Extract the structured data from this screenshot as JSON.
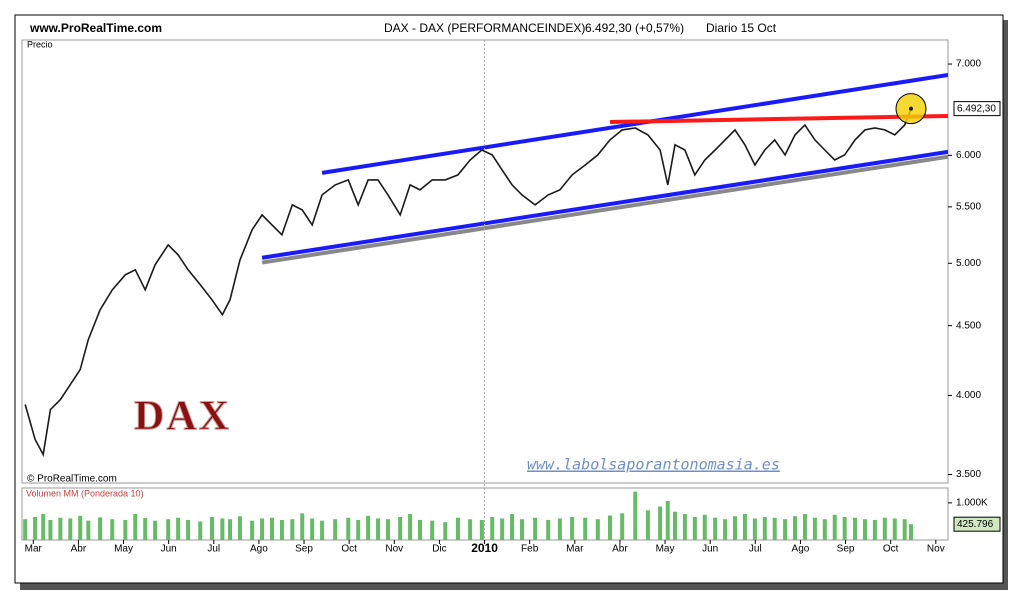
{
  "site": "www.ProRealTime.com",
  "header": {
    "title": "DAX - DAX (PERFORMANCEINDEX)",
    "change": "6.492,30 (+0,57%)",
    "period": "Diario  15 Oct"
  },
  "chart_data": [
    {
      "type": "line",
      "label": "Precio",
      "copyright": "© ProRealTime.com",
      "watermark": "DAX",
      "url": "www.labolsaporantonomasia.es",
      "log_scale": true,
      "xlim": [
        -0.25,
        20.27
      ],
      "ylim": [
        3450,
        7290
      ],
      "yticks": [
        {
          "value": 3500,
          "label": "3.500"
        },
        {
          "value": 4000,
          "label": "4.000"
        },
        {
          "value": 4500,
          "label": "4.500"
        },
        {
          "value": 5000,
          "label": "5.000"
        },
        {
          "value": 5500,
          "label": "5.500"
        },
        {
          "value": 6000,
          "label": "6.000"
        },
        {
          "value": 7000,
          "label": "7.000"
        }
      ],
      "highlight_color": "#f5d000",
      "series": [
        {
          "name": "DAX",
          "color": "#1a1a1a",
          "x": [
            -0.18,
            0.04,
            0.22,
            0.38,
            0.6,
            0.82,
            1.04,
            1.22,
            1.48,
            1.75,
            2.04,
            2.26,
            2.48,
            2.7,
            2.99,
            3.21,
            3.43,
            3.7,
            3.96,
            4.19,
            4.36,
            4.58,
            4.85,
            5.07,
            5.29,
            5.51,
            5.74,
            5.96,
            6.18,
            6.4,
            6.69,
            6.98,
            7.2,
            7.42,
            7.64,
            7.86,
            8.13,
            8.35,
            8.57,
            8.84,
            9.13,
            9.41,
            9.68,
            9.94,
            10.17,
            10.39,
            10.61,
            10.83,
            11.12,
            11.41,
            11.67,
            11.94,
            12.23,
            12.51,
            12.78,
            13.05,
            13.34,
            13.62,
            13.89,
            14.06,
            14.22,
            14.44,
            14.66,
            14.88,
            15.11,
            15.33,
            15.55,
            15.77,
            15.99,
            16.21,
            16.43,
            16.66,
            16.88,
            17.1,
            17.32,
            17.54,
            17.76,
            17.98,
            18.21,
            18.43,
            18.65,
            18.87,
            19.09,
            19.31,
            19.45
          ],
          "values": [
            3939,
            3713,
            3620,
            3905,
            3972,
            4074,
            4178,
            4395,
            4622,
            4781,
            4904,
            4945,
            4781,
            4987,
            5158,
            5072,
            4945,
            4822,
            4701,
            4584,
            4701,
            5029,
            5291,
            5426,
            5335,
            5246,
            5518,
            5472,
            5335,
            5612,
            5708,
            5756,
            5518,
            5756,
            5756,
            5612,
            5426,
            5708,
            5660,
            5756,
            5756,
            5805,
            5953,
            6054,
            6004,
            5854,
            5708,
            5612,
            5518,
            5612,
            5660,
            5805,
            5903,
            6004,
            6158,
            6263,
            6283,
            6210,
            6054,
            5708,
            6107,
            6054,
            5805,
            5953,
            6054,
            6158,
            6263,
            6107,
            5903,
            6054,
            6158,
            6004,
            6210,
            6315,
            6158,
            6054,
            5953,
            6004,
            6158,
            6263,
            6283,
            6263,
            6210,
            6315,
            6492.3
          ],
          "value_labels": [
            null,
            null,
            null,
            null,
            null,
            null,
            null,
            null,
            null,
            null,
            null,
            null,
            null,
            null,
            null,
            null,
            null,
            null,
            null,
            null,
            null,
            null,
            null,
            null,
            null,
            null,
            null,
            null,
            null,
            null,
            null,
            null,
            null,
            null,
            null,
            null,
            null,
            null,
            null,
            null,
            null,
            null,
            null,
            null,
            null,
            null,
            null,
            null,
            null,
            null,
            null,
            null,
            null,
            null,
            null,
            null,
            null,
            null,
            null,
            null,
            null,
            null,
            null,
            null,
            null,
            null,
            null,
            null,
            null,
            null,
            null,
            null,
            null,
            null,
            null,
            null,
            null,
            null,
            null,
            null,
            null,
            null,
            null,
            null,
            "6.492,30"
          ]
        }
      ],
      "trendlines": [
        {
          "color": "#888888",
          "x": [
            5.07,
            20.27
          ],
          "y": [
            5006,
            5986
          ]
        },
        {
          "color": "#1a1aff",
          "x": [
            6.4,
            20.27
          ],
          "y": [
            5825,
            6872
          ]
        },
        {
          "color": "#1a1aff",
          "x": [
            5.07,
            20.27
          ],
          "y": [
            5047,
            6035
          ]
        },
        {
          "color": "#ff1a1a",
          "x": [
            12.78,
            20.27
          ],
          "y": [
            6347,
            6412
          ]
        }
      ]
    },
    {
      "type": "bar",
      "label": "Volumen MM (Ponderada 10)",
      "xlim": [
        -0.25,
        20.27
      ],
      "ylim": [
        0,
        1400000
      ],
      "yticks": [
        {
          "value": 1000000,
          "label": "1.000K"
        }
      ],
      "xticks": [
        {
          "value": 0,
          "label": "Mar"
        },
        {
          "value": 1,
          "label": "Abr"
        },
        {
          "value": 2,
          "label": "May"
        },
        {
          "value": 3,
          "label": "Jun"
        },
        {
          "value": 4,
          "label": "Jul"
        },
        {
          "value": 5,
          "label": "Ago"
        },
        {
          "value": 6,
          "label": "Sep"
        },
        {
          "value": 7,
          "label": "Oct"
        },
        {
          "value": 8,
          "label": "Nov"
        },
        {
          "value": 9,
          "label": "Dic"
        },
        {
          "value": 10,
          "label": "2010",
          "bold": true
        },
        {
          "value": 11,
          "label": "Feb"
        },
        {
          "value": 12,
          "label": "Mar"
        },
        {
          "value": 13,
          "label": "Abr"
        },
        {
          "value": 14,
          "label": "May"
        },
        {
          "value": 15,
          "label": "Jun"
        },
        {
          "value": 16,
          "label": "Jul"
        },
        {
          "value": 17,
          "label": "Ago"
        },
        {
          "value": 18,
          "label": "Sep"
        },
        {
          "value": 19,
          "label": "Oct"
        },
        {
          "value": 20,
          "label": "Nov"
        }
      ],
      "series": [
        {
          "name": "Volumen",
          "color": "#66bb66",
          "x": [
            -0.18,
            0.04,
            0.22,
            0.38,
            0.6,
            0.82,
            1.04,
            1.22,
            1.48,
            1.75,
            2.04,
            2.26,
            2.48,
            2.7,
            2.99,
            3.21,
            3.43,
            3.7,
            3.96,
            4.19,
            4.36,
            4.58,
            4.85,
            5.07,
            5.29,
            5.51,
            5.74,
            5.96,
            6.18,
            6.4,
            6.69,
            6.98,
            7.2,
            7.42,
            7.64,
            7.86,
            8.13,
            8.35,
            8.57,
            8.84,
            9.13,
            9.41,
            9.68,
            9.94,
            10.17,
            10.39,
            10.61,
            10.83,
            11.12,
            11.41,
            11.67,
            11.94,
            12.23,
            12.51,
            12.78,
            13.05,
            13.34,
            13.62,
            13.89,
            14.06,
            14.22,
            14.44,
            14.66,
            14.88,
            15.11,
            15.33,
            15.55,
            15.77,
            15.99,
            16.21,
            16.43,
            16.66,
            16.88,
            17.1,
            17.32,
            17.54,
            17.76,
            17.98,
            18.21,
            18.43,
            18.65,
            18.87,
            19.09,
            19.31,
            19.45
          ],
          "values": [
            560000,
            620000,
            700000,
            540000,
            600000,
            580000,
            650000,
            520000,
            610000,
            560000,
            540000,
            700000,
            590000,
            520000,
            560000,
            600000,
            540000,
            500000,
            620000,
            580000,
            560000,
            640000,
            520000,
            580000,
            600000,
            540000,
            560000,
            720000,
            580000,
            520000,
            560000,
            600000,
            540000,
            650000,
            580000,
            560000,
            620000,
            700000,
            540000,
            520000,
            480000,
            600000,
            560000,
            540000,
            620000,
            580000,
            700000,
            560000,
            600000,
            540000,
            580000,
            620000,
            600000,
            560000,
            660000,
            720000,
            1300000,
            800000,
            900000,
            1050000,
            760000,
            700000,
            620000,
            680000,
            600000,
            560000,
            640000,
            700000,
            580000,
            620000,
            600000,
            560000,
            640000,
            700000,
            600000,
            560000,
            680000,
            620000,
            600000,
            560000,
            540000,
            600000,
            580000,
            560000,
            425796
          ],
          "value_labels": [
            null,
            null,
            null,
            null,
            null,
            null,
            null,
            null,
            null,
            null,
            null,
            null,
            null,
            null,
            null,
            null,
            null,
            null,
            null,
            null,
            null,
            null,
            null,
            null,
            null,
            null,
            null,
            null,
            null,
            null,
            null,
            null,
            null,
            null,
            null,
            null,
            null,
            null,
            null,
            null,
            null,
            null,
            null,
            null,
            null,
            null,
            null,
            null,
            null,
            null,
            null,
            null,
            null,
            null,
            null,
            null,
            null,
            null,
            null,
            null,
            null,
            null,
            null,
            null,
            null,
            null,
            null,
            null,
            null,
            null,
            null,
            null,
            null,
            null,
            null,
            null,
            null,
            null,
            null,
            null,
            null,
            null,
            null,
            null,
            "425.796"
          ]
        }
      ]
    }
  ]
}
